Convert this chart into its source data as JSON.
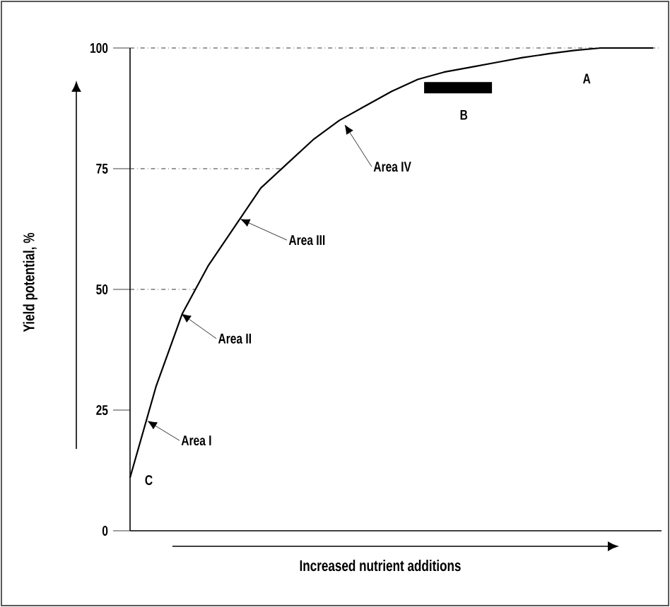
{
  "chart_data": {
    "type": "line",
    "ylabel": "Yield potential, %",
    "xlabel": "Increased nutrient additions",
    "categories": [
      null,
      null,
      null,
      null,
      null,
      null,
      null,
      null,
      null,
      null,
      null,
      null,
      null,
      null,
      null,
      null,
      null,
      null,
      null,
      null,
      null
    ],
    "values": [
      11,
      30,
      45,
      55,
      63,
      71,
      76,
      81,
      85,
      88,
      91,
      93.5,
      95,
      96,
      97,
      98,
      98.8,
      99.5,
      100,
      100,
      100
    ],
    "color": "#000000",
    "marker": "none",
    "line_style": "solid",
    "ylim": [
      0,
      100
    ],
    "yticks": [
      0,
      25,
      50,
      75,
      100
    ],
    "ref_lines": [
      {
        "axis": "y",
        "value": 50,
        "line_style": "dashdotted"
      },
      {
        "axis": "y",
        "value": 75,
        "line_style": "dashdotted"
      },
      {
        "axis": "y",
        "value": 100,
        "line_style": "dashdotted"
      }
    ],
    "annotations": [
      "Area I",
      "Area II",
      "Area III",
      "Area IV",
      "A",
      "B",
      "C"
    ],
    "grid": false
  }
}
